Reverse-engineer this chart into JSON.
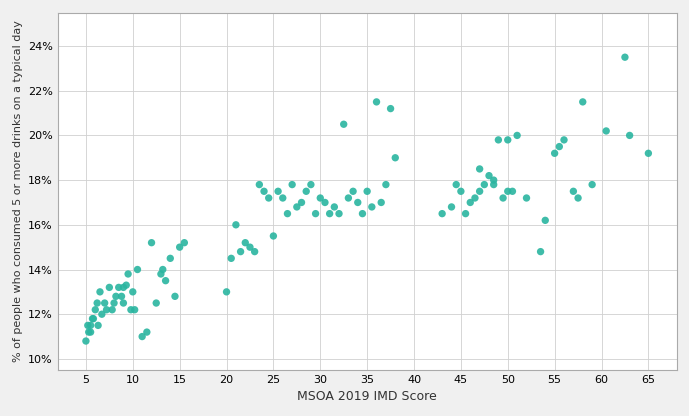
{
  "x": [
    5.0,
    5.2,
    5.3,
    5.5,
    5.5,
    5.7,
    5.8,
    6.0,
    6.2,
    6.3,
    6.5,
    6.7,
    7.0,
    7.2,
    7.5,
    7.8,
    8.0,
    8.2,
    8.5,
    8.8,
    9.0,
    9.0,
    9.3,
    9.5,
    9.8,
    10.0,
    10.2,
    10.5,
    11.0,
    11.5,
    12.0,
    12.5,
    13.0,
    13.2,
    13.5,
    14.0,
    14.5,
    15.0,
    15.5,
    20.0,
    20.5,
    21.0,
    21.5,
    22.0,
    22.5,
    23.0,
    23.5,
    24.0,
    24.5,
    25.0,
    25.5,
    26.0,
    26.5,
    27.0,
    27.5,
    28.0,
    28.5,
    29.0,
    29.5,
    30.0,
    30.5,
    31.0,
    31.5,
    32.0,
    32.5,
    33.0,
    33.5,
    34.0,
    34.5,
    35.0,
    35.5,
    36.0,
    36.5,
    37.0,
    37.5,
    38.0,
    43.0,
    44.0,
    44.5,
    45.0,
    45.5,
    46.0,
    46.5,
    47.0,
    47.0,
    47.5,
    48.0,
    48.5,
    48.5,
    49.0,
    49.5,
    50.0,
    50.0,
    50.5,
    51.0,
    52.0,
    53.5,
    54.0,
    55.0,
    55.5,
    56.0,
    57.0,
    57.5,
    58.0,
    59.0,
    60.5,
    62.5,
    63.0,
    65.0
  ],
  "y": [
    10.8,
    11.5,
    11.2,
    11.5,
    11.2,
    11.8,
    11.8,
    12.2,
    12.5,
    11.5,
    13.0,
    12.0,
    12.5,
    12.2,
    13.2,
    12.2,
    12.5,
    12.8,
    13.2,
    12.8,
    13.2,
    12.5,
    13.3,
    13.8,
    12.2,
    13.0,
    12.2,
    14.0,
    11.0,
    11.2,
    15.2,
    12.5,
    13.8,
    14.0,
    13.5,
    14.5,
    12.8,
    15.0,
    15.2,
    13.0,
    14.5,
    16.0,
    14.8,
    15.2,
    15.0,
    14.8,
    17.8,
    17.5,
    17.2,
    15.5,
    17.5,
    17.2,
    16.5,
    17.8,
    16.8,
    17.0,
    17.5,
    17.8,
    16.5,
    17.2,
    17.0,
    16.5,
    16.8,
    16.5,
    20.5,
    17.2,
    17.5,
    17.0,
    16.5,
    17.5,
    16.8,
    21.5,
    17.0,
    17.8,
    21.2,
    19.0,
    16.5,
    16.8,
    17.8,
    17.5,
    16.5,
    17.0,
    17.2,
    18.5,
    17.5,
    17.8,
    18.2,
    17.8,
    18.0,
    19.8,
    17.2,
    17.5,
    19.8,
    17.5,
    20.0,
    17.2,
    14.8,
    16.2,
    19.2,
    19.5,
    19.8,
    17.5,
    17.2,
    21.5,
    17.8,
    20.2,
    23.5,
    20.0,
    19.2
  ],
  "point_color": "#2ab5a0",
  "point_size": 28,
  "point_alpha": 0.9,
  "xlabel": "MSOA 2019 IMD Score",
  "ylabel": "% of people who consumed 5 or more drinks on a typical day",
  "xlim": [
    2,
    68
  ],
  "ylim": [
    9.5,
    25.5
  ],
  "xticks": [
    5,
    10,
    15,
    20,
    25,
    30,
    35,
    40,
    45,
    50,
    55,
    60,
    65
  ],
  "yticks": [
    10,
    12,
    14,
    16,
    18,
    20,
    22,
    24
  ],
  "ytick_labels": [
    "10%",
    "12%",
    "14%",
    "16%",
    "18%",
    "20%",
    "22%",
    "24%"
  ],
  "grid_color": "#d0d0d0",
  "plot_bg_color": "#ffffff",
  "fig_bg_color": "#f0f0f0",
  "border_color": "#aaaaaa",
  "xlabel_fontsize": 9,
  "ylabel_fontsize": 8,
  "tick_fontsize": 8
}
